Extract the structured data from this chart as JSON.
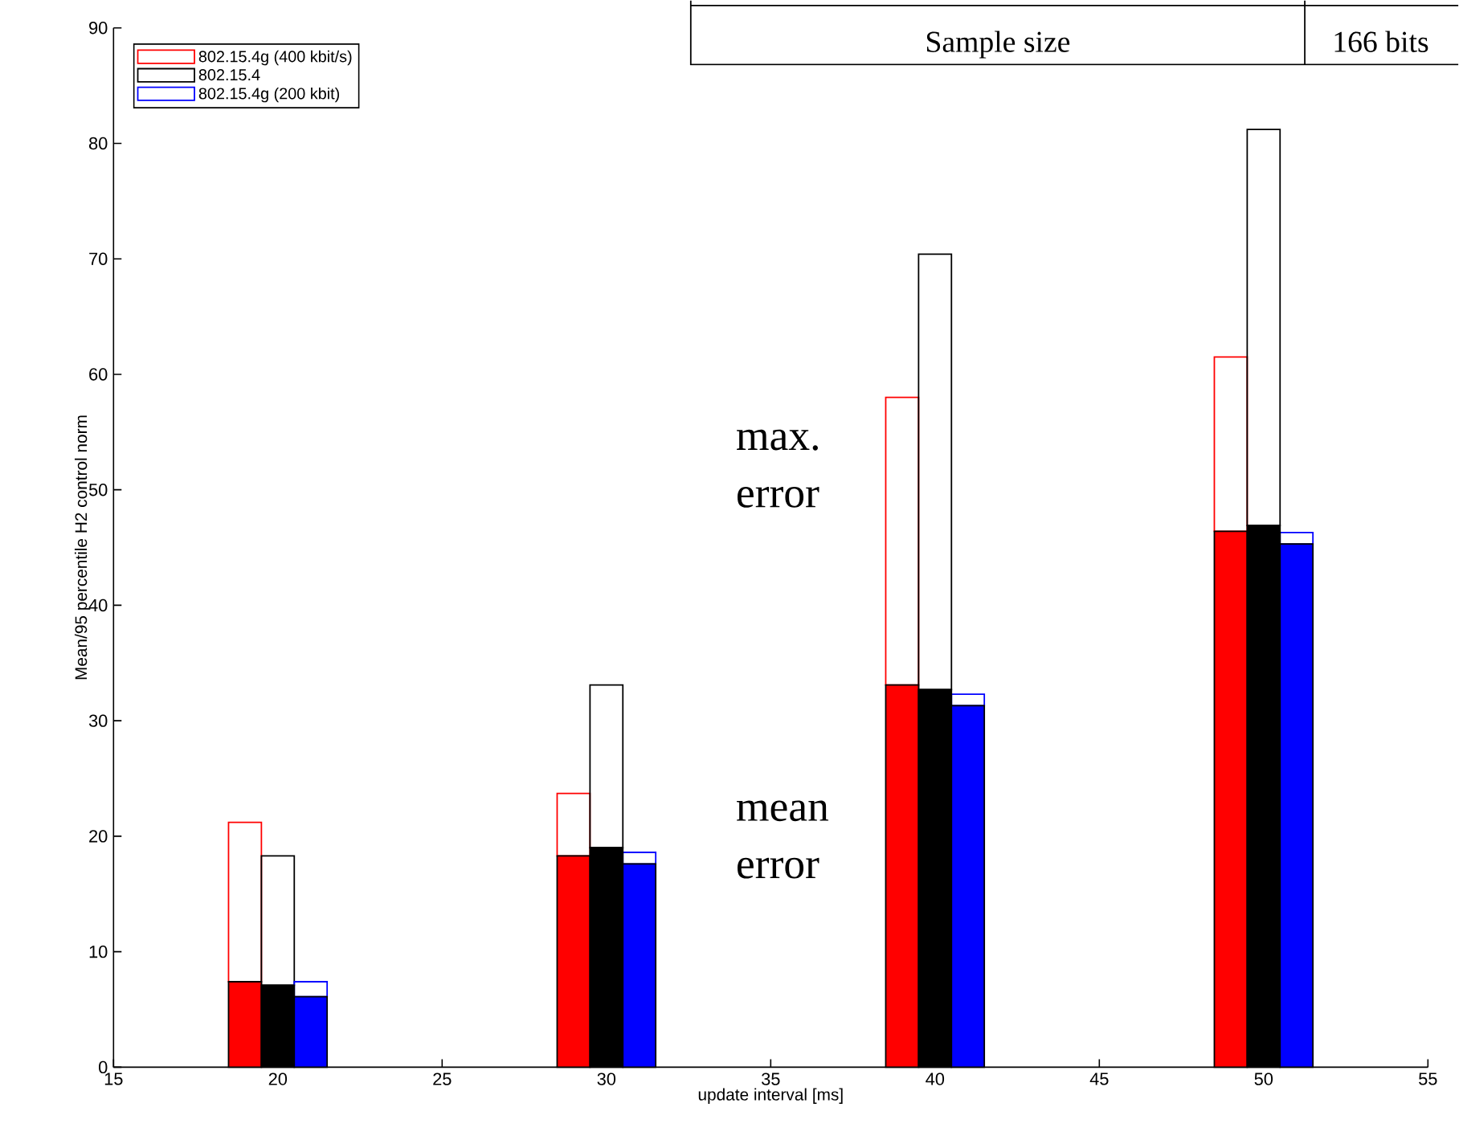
{
  "chart_data": {
    "type": "bar",
    "xlabel": "update interval [ms]",
    "ylabel": "Mean/95 percentile H2 control norm",
    "xlim": [
      15,
      55
    ],
    "xticks": [
      15,
      20,
      25,
      30,
      35,
      40,
      45,
      50,
      55
    ],
    "ylim": [
      0,
      90
    ],
    "yticks": [
      0,
      10,
      20,
      30,
      40,
      50,
      60,
      70,
      80,
      90
    ],
    "legend": "top left",
    "annotations": [
      "max. error",
      "mean error",
      "Sample size",
      "166 bits"
    ],
    "series": [
      {
        "name": "802.15.4g (400 kbit/s)",
        "color": "#ff0000",
        "x": [
          19,
          29,
          39,
          49
        ],
        "base": [
          7.4,
          18.3,
          33.1,
          46.4
        ],
        "values": [
          13.8,
          5.4,
          24.9,
          15.1
        ]
      },
      {
        "name": "802.15.4",
        "color": "#000000",
        "x": [
          20,
          30,
          40,
          50
        ],
        "base": [
          7.1,
          19.0,
          32.7,
          46.9
        ],
        "values": [
          11.2,
          14.1,
          37.7,
          34.3
        ]
      },
      {
        "name": "802.15.4g (200 kbit)",
        "color": "#0000ff",
        "x": [
          21,
          31,
          41,
          51
        ],
        "base": [
          6.1,
          17.6,
          31.3,
          45.3
        ],
        "values": [
          1.3,
          1.0,
          1.0,
          1.0
        ]
      },
      {
        "color": "#ff0000",
        "x": [
          19,
          29,
          39,
          49
        ],
        "values": [
          7.4,
          18.3,
          33.1,
          46.4
        ]
      },
      {
        "color": "#000000",
        "x": [
          20,
          30,
          40,
          50
        ],
        "values": [
          7.1,
          19.0,
          32.7,
          46.9
        ]
      },
      {
        "color": "#0000ff",
        "x": [
          21,
          31,
          41,
          51
        ],
        "values": [
          6.1,
          17.6,
          31.3,
          45.3
        ]
      }
    ]
  }
}
